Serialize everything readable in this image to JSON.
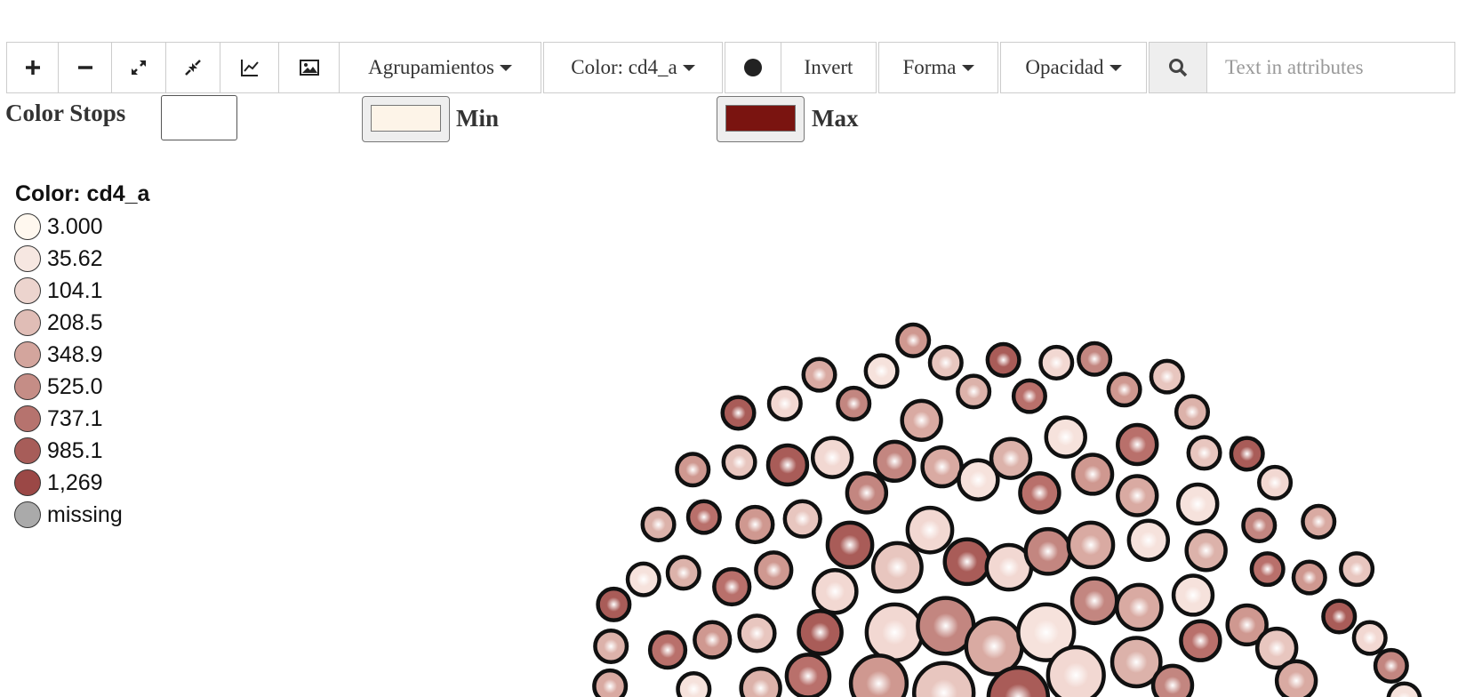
{
  "toolbar": {
    "grouping": "Agrupamientos",
    "color": "Color: cd4_a",
    "invert": "Invert",
    "shape": "Forma",
    "opacity": "Opacidad",
    "search_placeholder": "Text in attributes"
  },
  "color_stops": {
    "label": "Color Stops",
    "min": {
      "label": "Min",
      "color": "#fdf4e8"
    },
    "max": {
      "label": "Max",
      "color": "#7a1410"
    }
  },
  "legend": {
    "title": "Color: cd4_a",
    "items": [
      {
        "label": "3.000",
        "color": "#fff8ef"
      },
      {
        "label": "35.62",
        "color": "#f6e7e1"
      },
      {
        "label": "104.1",
        "color": "#ecd4ce"
      },
      {
        "label": "208.5",
        "color": "#e0bdb6"
      },
      {
        "label": "348.9",
        "color": "#d3a59d"
      },
      {
        "label": "525.0",
        "color": "#c58d86"
      },
      {
        "label": "737.1",
        "color": "#b6736e"
      },
      {
        "label": "985.1",
        "color": "#a75d59"
      },
      {
        "label": "1,269",
        "color": "#9b4846"
      },
      {
        "label": "missing",
        "color": "#aaaaaa"
      }
    ]
  }
}
